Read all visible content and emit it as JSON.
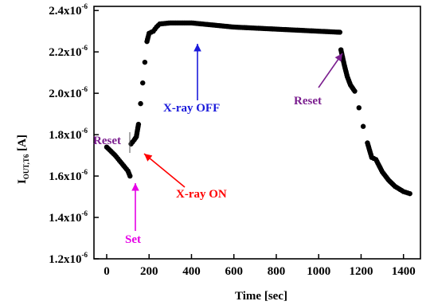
{
  "chart_data": {
    "type": "scatter",
    "xlabel": "Time [sec]",
    "ylabel": {
      "main": "I",
      "sub": "OUT,T6",
      "unit": " [A]"
    },
    "xlim": [
      -60,
      1480
    ],
    "ylim": [
      1.2e-06,
      2.42e-06
    ],
    "x_ticks": [
      0,
      200,
      400,
      600,
      800,
      1000,
      1200,
      1400
    ],
    "x_tick_labels": [
      "0",
      "200",
      "400",
      "600",
      "800",
      "1000",
      "1200",
      "1400"
    ],
    "y_ticks": [
      1.2e-06,
      1.4e-06,
      1.6e-06,
      1.8e-06,
      2e-06,
      2.2e-06,
      2.4e-06
    ],
    "y_tick_labels": [
      {
        "mantissa": "1.2x10",
        "exp": "-6"
      },
      {
        "mantissa": "1.4x10",
        "exp": "-6"
      },
      {
        "mantissa": "1.6x10",
        "exp": "-6"
      },
      {
        "mantissa": "1.8x10",
        "exp": "-6"
      },
      {
        "mantissa": "2.0x10",
        "exp": "-6"
      },
      {
        "mantissa": "2.2x10",
        "exp": "-6"
      },
      {
        "mantissa": "2.4x10",
        "exp": "-6"
      }
    ],
    "grid": false,
    "series": [
      {
        "color": "#000000",
        "points": [
          [
            0,
            1.74e-06
          ],
          [
            20,
            1.72e-06
          ],
          [
            40,
            1.7e-06
          ],
          [
            60,
            1.675e-06
          ],
          [
            80,
            1.65e-06
          ],
          [
            100,
            1.625e-06
          ],
          [
            110,
            1.6e-06
          ],
          [
            115,
            1.755e-06
          ],
          [
            130,
            1.775e-06
          ],
          [
            140,
            1.79e-06
          ],
          [
            150,
            1.85e-06
          ],
          [
            160,
            1.95e-06
          ],
          [
            170,
            2.05e-06
          ],
          [
            180,
            2.15e-06
          ],
          [
            190,
            2.25e-06
          ],
          [
            200,
            2.29e-06
          ],
          [
            220,
            2.3e-06
          ],
          [
            235,
            2.32e-06
          ],
          [
            250,
            2.335e-06
          ],
          [
            300,
            2.34e-06
          ],
          [
            400,
            2.34e-06
          ],
          [
            500,
            2.33e-06
          ],
          [
            600,
            2.32e-06
          ],
          [
            700,
            2.315e-06
          ],
          [
            800,
            2.31e-06
          ],
          [
            900,
            2.305e-06
          ],
          [
            1000,
            2.3e-06
          ],
          [
            1100,
            2.295e-06
          ],
          [
            1105,
            2.21e-06
          ],
          [
            1120,
            2.14e-06
          ],
          [
            1135,
            2.08e-06
          ],
          [
            1150,
            2.04e-06
          ],
          [
            1170,
            2.01e-06
          ],
          [
            1190,
            1.93e-06
          ],
          [
            1210,
            1.84e-06
          ],
          [
            1230,
            1.76e-06
          ],
          [
            1250,
            1.69e-06
          ],
          [
            1270,
            1.68e-06
          ],
          [
            1300,
            1.62e-06
          ],
          [
            1330,
            1.58e-06
          ],
          [
            1360,
            1.55e-06
          ],
          [
            1400,
            1.525e-06
          ],
          [
            1430,
            1.515e-06
          ]
        ]
      }
    ],
    "annotations": [
      {
        "text": "Reset",
        "color": "#7b1f8f"
      },
      {
        "text": "Set",
        "color": "#e600e6"
      },
      {
        "text": "X-ray ON",
        "color": "#ff0000"
      },
      {
        "text": "X-ray OFF",
        "color": "#1a1adb"
      },
      {
        "text": "Reset",
        "color": "#7b1f8f"
      }
    ]
  }
}
